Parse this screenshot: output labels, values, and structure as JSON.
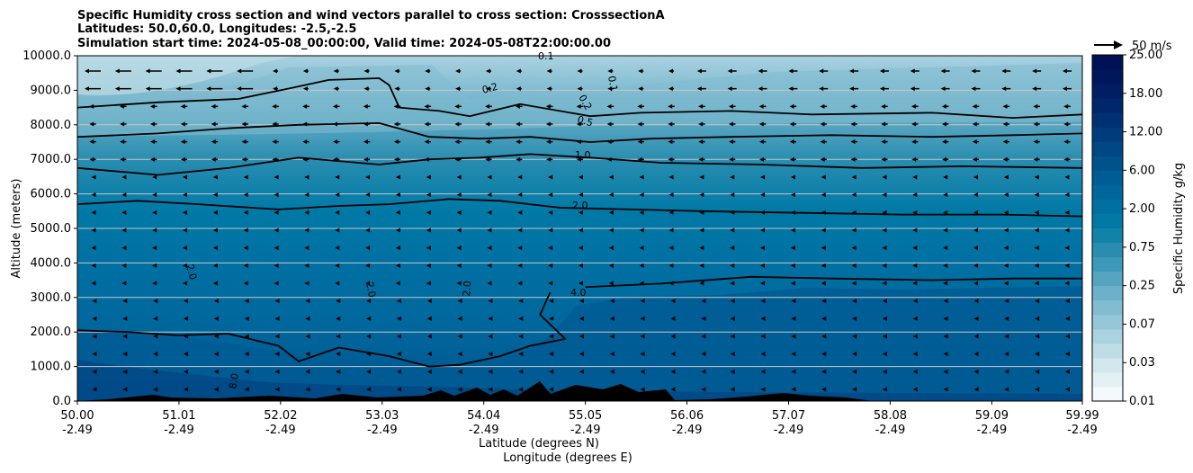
{
  "chart_data": {
    "type": "contour",
    "title_lines": [
      "Specific Humidity cross section and wind vectors parallel to cross section: CrosssectionA",
      "Latitudes: 50.0,60.0, Longitudes: -2.5,-2.5",
      "Simulation start time: 2024-05-08_00:00:00, Valid time: 2024-05-08T22:00:00.00"
    ],
    "xlabel_lines": [
      "Latitude (degrees N)",
      "Longitude (degrees E)"
    ],
    "ylabel": "Altitude (meters)",
    "ylim": [
      0,
      10000
    ],
    "xlim": [
      50.0,
      59.99
    ],
    "x_ticks": [
      {
        "value": 50.0,
        "lat": "50.00",
        "lon": "-2.49"
      },
      {
        "value": 51.01,
        "lat": "51.01",
        "lon": "-2.49"
      },
      {
        "value": 52.02,
        "lat": "52.02",
        "lon": "-2.49"
      },
      {
        "value": 53.03,
        "lat": "53.03",
        "lon": "-2.49"
      },
      {
        "value": 54.04,
        "lat": "54.04",
        "lon": "-2.49"
      },
      {
        "value": 55.05,
        "lat": "55.05",
        "lon": "-2.49"
      },
      {
        "value": 56.06,
        "lat": "56.06",
        "lon": "-2.49"
      },
      {
        "value": 57.07,
        "lat": "57.07",
        "lon": "-2.49"
      },
      {
        "value": 58.08,
        "lat": "58.08",
        "lon": "-2.49"
      },
      {
        "value": 59.09,
        "lat": "59.09",
        "lon": "-2.49"
      },
      {
        "value": 59.99,
        "lat": "59.99",
        "lon": "-2.49"
      }
    ],
    "y_ticks": [
      {
        "value": 0,
        "label": "0.0"
      },
      {
        "value": 1000,
        "label": "1000.0"
      },
      {
        "value": 2000,
        "label": "2000.0"
      },
      {
        "value": 3000,
        "label": "3000.0"
      },
      {
        "value": 4000,
        "label": "4000.0"
      },
      {
        "value": 5000,
        "label": "5000.0"
      },
      {
        "value": 6000,
        "label": "6000.0"
      },
      {
        "value": 7000,
        "label": "7000.0"
      },
      {
        "value": 8000,
        "label": "8000.0"
      },
      {
        "value": 9000,
        "label": "9000.0"
      },
      {
        "value": 10000,
        "label": "10000.0"
      }
    ],
    "grid": "horizontal",
    "colorbar": {
      "label": "Specific Humidity g/kg",
      "tick_labels": [
        "0.01",
        "0.03",
        "0.07",
        "0.25",
        "0.75",
        "2.00",
        "6.00",
        "12.00",
        "18.00",
        "25.00"
      ],
      "colors": [
        "#f4fafc",
        "#e3f0f4",
        "#d2e7ee",
        "#bedde7",
        "#aad2e0",
        "#96c7d8",
        "#82bcd0",
        "#6cb1c9",
        "#55a5c1",
        "#3e99b8",
        "#2a8db0",
        "#1282a8",
        "#0079a6",
        "#0070a2",
        "#00669c",
        "#005c94",
        "#00528c",
        "#004784",
        "#003c7c",
        "#003174",
        "#00276c",
        "#001e63",
        "#00175b",
        "#001155"
      ]
    },
    "wind_reference": {
      "label": "50 m/s"
    },
    "contour_labels": [
      "0.1",
      "0.2",
      "0.5",
      "1.0",
      "2.0",
      "4.0",
      "8.0"
    ],
    "contours": [
      {
        "level": 0.2,
        "points": [
          [
            50.0,
            8500
          ],
          [
            50.8,
            8650
          ],
          [
            51.6,
            8750
          ],
          [
            52.1,
            9050
          ],
          [
            52.5,
            9300
          ],
          [
            53.0,
            9350
          ],
          [
            53.1,
            9150
          ],
          [
            53.2,
            8500
          ],
          [
            53.6,
            8400
          ],
          [
            53.9,
            8250
          ],
          [
            54.4,
            8600
          ],
          [
            55.1,
            8250
          ],
          [
            55.6,
            8350
          ],
          [
            56.5,
            8400
          ],
          [
            57.3,
            8300
          ],
          [
            58.5,
            8350
          ],
          [
            59.3,
            8200
          ],
          [
            59.99,
            8300
          ]
        ]
      },
      {
        "level": 0.5,
        "points": [
          [
            50.0,
            7650
          ],
          [
            50.8,
            7750
          ],
          [
            51.5,
            7900
          ],
          [
            52.2,
            8000
          ],
          [
            53.0,
            8050
          ],
          [
            53.5,
            7650
          ],
          [
            54.0,
            7600
          ],
          [
            54.5,
            7650
          ],
          [
            55.1,
            7500
          ],
          [
            55.7,
            7600
          ],
          [
            56.5,
            7650
          ],
          [
            57.5,
            7700
          ],
          [
            58.5,
            7650
          ],
          [
            59.3,
            7700
          ],
          [
            59.99,
            7750
          ]
        ]
      },
      {
        "level": 1.0,
        "points": [
          [
            50.0,
            6750
          ],
          [
            50.8,
            6550
          ],
          [
            51.5,
            6750
          ],
          [
            52.2,
            7050
          ],
          [
            53.0,
            6850
          ],
          [
            53.5,
            7000
          ],
          [
            54.0,
            7050
          ],
          [
            54.5,
            7150
          ],
          [
            55.1,
            7050
          ],
          [
            55.8,
            6900
          ],
          [
            56.8,
            6850
          ],
          [
            57.8,
            6750
          ],
          [
            58.8,
            6800
          ],
          [
            59.99,
            6750
          ]
        ]
      },
      {
        "level": 2.0,
        "points": [
          [
            50.0,
            5700
          ],
          [
            50.6,
            5800
          ],
          [
            51.2,
            5700
          ],
          [
            52.0,
            5550
          ],
          [
            52.6,
            5650
          ],
          [
            53.1,
            5700
          ],
          [
            53.7,
            5850
          ],
          [
            54.2,
            5800
          ],
          [
            54.8,
            5600
          ],
          [
            55.5,
            5550
          ],
          [
            56.2,
            5500
          ],
          [
            57.2,
            5450
          ],
          [
            58.2,
            5400
          ],
          [
            59.2,
            5400
          ],
          [
            59.99,
            5350
          ]
        ]
      },
      {
        "level": 4.0,
        "points": [
          [
            54.7,
            3150
          ],
          [
            54.6,
            2500
          ],
          [
            54.85,
            1800
          ],
          [
            54.5,
            1600
          ],
          [
            54.2,
            1300
          ],
          [
            53.8,
            1050
          ],
          [
            53.5,
            1000
          ],
          [
            53.1,
            1300
          ],
          [
            52.6,
            1550
          ],
          [
            52.2,
            1150
          ],
          [
            52.0,
            1600
          ],
          [
            51.5,
            1950
          ],
          [
            51.0,
            1900
          ],
          [
            50.5,
            2000
          ],
          [
            50.0,
            2050
          ]
        ]
      },
      {
        "level": 4.0,
        "points": [
          [
            55.05,
            3300
          ],
          [
            55.8,
            3400
          ],
          [
            56.7,
            3600
          ],
          [
            57.5,
            3550
          ],
          [
            58.5,
            3500
          ],
          [
            59.3,
            3550
          ],
          [
            59.99,
            3550
          ]
        ]
      }
    ]
  }
}
